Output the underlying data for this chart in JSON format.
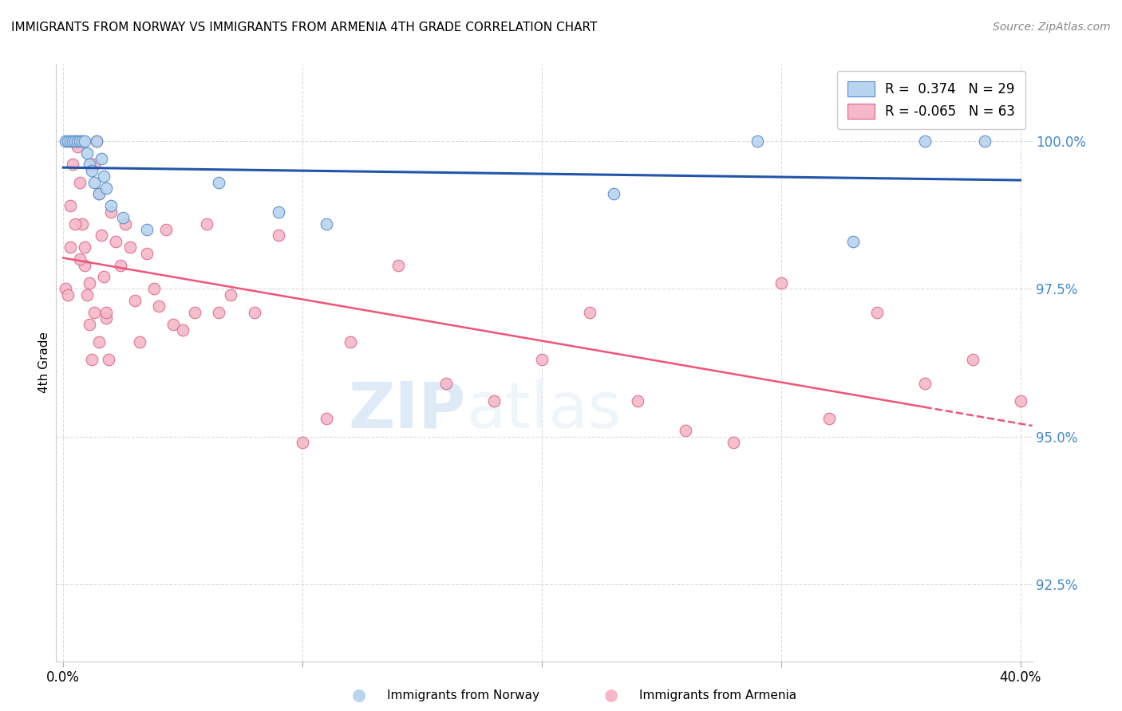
{
  "title": "IMMIGRANTS FROM NORWAY VS IMMIGRANTS FROM ARMENIA 4TH GRADE CORRELATION CHART",
  "source": "Source: ZipAtlas.com",
  "ylabel": "4th Grade",
  "yticks": [
    92.5,
    95.0,
    97.5,
    100.0
  ],
  "ytick_labels": [
    "92.5%",
    "95.0%",
    "97.5%",
    "100.0%"
  ],
  "ylim": [
    91.2,
    101.3
  ],
  "xlim": [
    -0.003,
    0.405
  ],
  "norway_color": "#b8d4ee",
  "armenia_color": "#f5b8c8",
  "norway_edge": "#5588cc",
  "armenia_edge": "#dd6688",
  "trend_norway_color": "#2255aa",
  "trend_armenia_color": "#ee5577",
  "legend_norway": "Immigrants from Norway",
  "legend_armenia": "Immigrants from Armenia",
  "R_norway": 0.374,
  "N_norway": 29,
  "R_armenia": -0.065,
  "N_armenia": 63,
  "watermark_zip": "ZIP",
  "watermark_atlas": "atlas",
  "background_color": "#ffffff",
  "grid_color": "#dddddd",
  "tick_color": "#4488cc",
  "title_fontsize": 11,
  "source_fontsize": 10
}
